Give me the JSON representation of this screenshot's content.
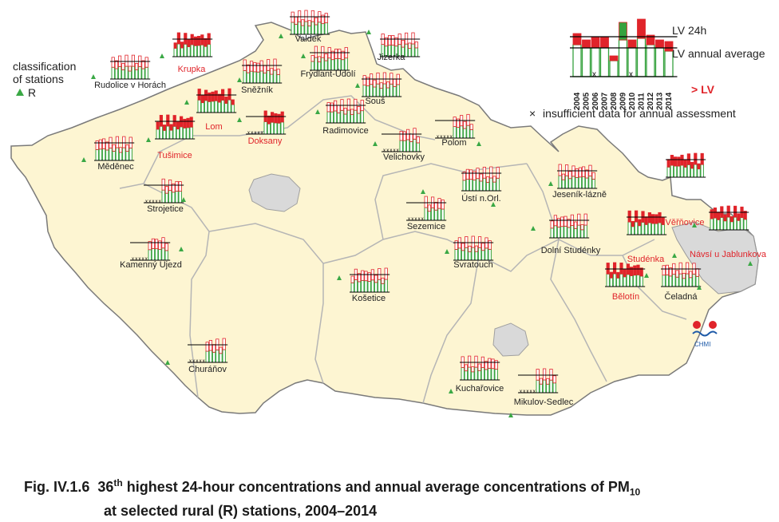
{
  "legend": {
    "classification_title": "classification\nof stations",
    "classification_item": "R",
    "lv_24h": "LV 24h",
    "lv_annual": "LV annual average",
    "over_lv": "> LV",
    "insufficient": "insufficient data for annual assessment",
    "years": [
      "2004",
      "2005",
      "2006",
      "2007",
      "2008",
      "2009",
      "2010",
      "2011",
      "2012",
      "2013",
      "2014"
    ]
  },
  "colors": {
    "land": "#fdf5d2",
    "border": "#7a7a7a",
    "region_border": "#b5b5b5",
    "city": "#d9d9d9",
    "marker": "#3aa845",
    "bar_green": "#36a23e",
    "bar_red": "#e0242a",
    "label_red": "#e0242a",
    "label_dark": "#222222"
  },
  "stations": [
    {
      "name": "Valdek",
      "exceed": false
    },
    {
      "name": "Jizerka",
      "exceed": false
    },
    {
      "name": "Krupka",
      "exceed": true
    },
    {
      "name": "Rudolice v Horách",
      "exceed": false
    },
    {
      "name": "Sněžník",
      "exceed": false
    },
    {
      "name": "Frýdlant-Údolí",
      "exceed": false
    },
    {
      "name": "Souš",
      "exceed": false
    },
    {
      "name": "Lom",
      "exceed": true
    },
    {
      "name": "Doksany",
      "exceed": true
    },
    {
      "name": "Radimovice",
      "exceed": false
    },
    {
      "name": "Polom",
      "exceed": false
    },
    {
      "name": "Tušimice",
      "exceed": true
    },
    {
      "name": "Měděnec",
      "exceed": false
    },
    {
      "name": "Velichovky",
      "exceed": false
    },
    {
      "name": "Strojetice",
      "exceed": false
    },
    {
      "name": "Ústí n.Orl.",
      "exceed": false
    },
    {
      "name": "Jeseník-lázně",
      "exceed": false
    },
    {
      "name": "Sezemice",
      "exceed": false
    },
    {
      "name": "Věřňovice",
      "exceed": true
    },
    {
      "name": "Kamenný Újezd",
      "exceed": false
    },
    {
      "name": "Svratouch",
      "exceed": false
    },
    {
      "name": "Dolní Studénky",
      "exceed": false
    },
    {
      "name": "Studénka",
      "exceed": true
    },
    {
      "name": "Návsí u Jablunkova",
      "exceed": true
    },
    {
      "name": "Košetice",
      "exceed": false
    },
    {
      "name": "Bělotín",
      "exceed": true
    },
    {
      "name": "Čeladná",
      "exceed": false
    },
    {
      "name": "Churáňov",
      "exceed": false
    },
    {
      "name": "Kuchařovice",
      "exceed": false
    },
    {
      "name": "Mikulov-Sedlec",
      "exceed": false
    }
  ],
  "logo_text": "CHMI",
  "caption": {
    "prefix": "Fig. IV.1.6",
    "num": "36",
    "sup": "th",
    "text1": " highest 24-hour concentrations and annual average concentrations of PM",
    "sub": "10",
    "line2": "at selected rural (R) stations, 2004–2014"
  }
}
